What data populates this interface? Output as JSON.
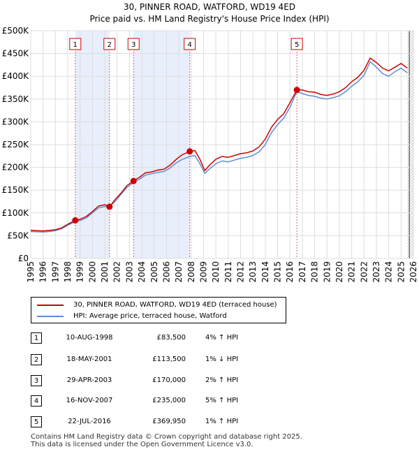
{
  "chart_data": {
    "type": "line",
    "title": "30, PINNER ROAD, WATFORD, WD19 4ED",
    "subtitle": "Price paid vs. HM Land Registry's House Price Index (HPI)",
    "x_range": [
      1995,
      2026
    ],
    "ylim": [
      0,
      500000
    ],
    "y_ticks": [
      0,
      50000,
      100000,
      150000,
      200000,
      250000,
      300000,
      350000,
      400000,
      450000,
      500000
    ],
    "y_tick_labels": [
      "£0",
      "£50K",
      "£100K",
      "£150K",
      "£200K",
      "£250K",
      "£300K",
      "£350K",
      "£400K",
      "£450K",
      "£500K"
    ],
    "x_ticks": [
      1995,
      1996,
      1997,
      1998,
      1999,
      2000,
      2001,
      2002,
      2003,
      2004,
      2005,
      2006,
      2007,
      2008,
      2009,
      2010,
      2011,
      2012,
      2013,
      2014,
      2015,
      2016,
      2017,
      2018,
      2019,
      2020,
      2021,
      2022,
      2023,
      2024,
      2025,
      2026
    ],
    "grid": true,
    "series": [
      {
        "name": "30, PINNER ROAD, WATFORD, WD19 4ED (terraced house)",
        "color": "#cc0000",
        "points": [
          [
            1995.0,
            62000
          ],
          [
            1995.5,
            61000
          ],
          [
            1996.0,
            60500
          ],
          [
            1996.5,
            61500
          ],
          [
            1997.0,
            63000
          ],
          [
            1997.5,
            67000
          ],
          [
            1998.0,
            75000
          ],
          [
            1998.6,
            83500
          ],
          [
            1999.0,
            86000
          ],
          [
            1999.5,
            92000
          ],
          [
            2000.0,
            103000
          ],
          [
            2000.5,
            115000
          ],
          [
            2001.0,
            118000
          ],
          [
            2001.4,
            113500
          ],
          [
            2001.8,
            128000
          ],
          [
            2002.3,
            143000
          ],
          [
            2002.8,
            160000
          ],
          [
            2003.3,
            170000
          ],
          [
            2003.8,
            178000
          ],
          [
            2004.3,
            188000
          ],
          [
            2004.8,
            190000
          ],
          [
            2005.3,
            194000
          ],
          [
            2005.8,
            196000
          ],
          [
            2006.3,
            205000
          ],
          [
            2006.8,
            218000
          ],
          [
            2007.3,
            228000
          ],
          [
            2007.9,
            235000
          ],
          [
            2008.3,
            237000
          ],
          [
            2008.7,
            218000
          ],
          [
            2009.1,
            193000
          ],
          [
            2009.5,
            205000
          ],
          [
            2010.0,
            218000
          ],
          [
            2010.5,
            224000
          ],
          [
            2011.0,
            222000
          ],
          [
            2011.5,
            226000
          ],
          [
            2012.0,
            230000
          ],
          [
            2012.5,
            232000
          ],
          [
            2013.0,
            236000
          ],
          [
            2013.5,
            245000
          ],
          [
            2014.0,
            262000
          ],
          [
            2014.5,
            288000
          ],
          [
            2015.0,
            305000
          ],
          [
            2015.5,
            318000
          ],
          [
            2016.0,
            342000
          ],
          [
            2016.56,
            369950
          ],
          [
            2017.0,
            370000
          ],
          [
            2017.5,
            366000
          ],
          [
            2018.0,
            365000
          ],
          [
            2018.5,
            360000
          ],
          [
            2019.0,
            358000
          ],
          [
            2019.5,
            361000
          ],
          [
            2020.0,
            366000
          ],
          [
            2020.5,
            375000
          ],
          [
            2021.0,
            388000
          ],
          [
            2021.5,
            398000
          ],
          [
            2022.0,
            413000
          ],
          [
            2022.5,
            440000
          ],
          [
            2023.0,
            430000
          ],
          [
            2023.5,
            418000
          ],
          [
            2024.0,
            412000
          ],
          [
            2024.5,
            420000
          ],
          [
            2025.0,
            428000
          ],
          [
            2025.5,
            418000
          ]
        ]
      },
      {
        "name": "HPI: Average price, terraced house, Watford",
        "color": "#5b8fd4",
        "points": [
          [
            1995.0,
            59000
          ],
          [
            1995.5,
            58500
          ],
          [
            1996.0,
            58000
          ],
          [
            1996.5,
            59000
          ],
          [
            1997.0,
            61000
          ],
          [
            1997.5,
            65000
          ],
          [
            1998.0,
            73000
          ],
          [
            1998.6,
            80500
          ],
          [
            1999.0,
            83000
          ],
          [
            1999.5,
            89000
          ],
          [
            2000.0,
            100000
          ],
          [
            2000.5,
            111000
          ],
          [
            2001.0,
            114000
          ],
          [
            2001.4,
            114500
          ],
          [
            2001.8,
            124000
          ],
          [
            2002.3,
            140000
          ],
          [
            2002.8,
            156000
          ],
          [
            2003.3,
            166500
          ],
          [
            2003.8,
            174000
          ],
          [
            2004.3,
            183000
          ],
          [
            2004.8,
            186000
          ],
          [
            2005.3,
            189000
          ],
          [
            2005.8,
            191000
          ],
          [
            2006.3,
            199000
          ],
          [
            2006.8,
            210000
          ],
          [
            2007.3,
            218000
          ],
          [
            2007.9,
            224000
          ],
          [
            2008.3,
            226000
          ],
          [
            2008.7,
            208000
          ],
          [
            2009.1,
            187000
          ],
          [
            2009.5,
            197000
          ],
          [
            2010.0,
            208000
          ],
          [
            2010.5,
            214000
          ],
          [
            2011.0,
            212000
          ],
          [
            2011.5,
            216000
          ],
          [
            2012.0,
            220000
          ],
          [
            2012.5,
            222000
          ],
          [
            2013.0,
            226000
          ],
          [
            2013.5,
            234000
          ],
          [
            2014.0,
            250000
          ],
          [
            2014.5,
            276000
          ],
          [
            2015.0,
            294000
          ],
          [
            2015.5,
            308000
          ],
          [
            2016.0,
            332000
          ],
          [
            2016.56,
            366300
          ],
          [
            2017.0,
            362000
          ],
          [
            2017.5,
            358000
          ],
          [
            2018.0,
            356000
          ],
          [
            2018.5,
            352000
          ],
          [
            2019.0,
            350000
          ],
          [
            2019.5,
            353000
          ],
          [
            2020.0,
            357000
          ],
          [
            2020.5,
            366000
          ],
          [
            2021.0,
            378000
          ],
          [
            2021.5,
            388000
          ],
          [
            2022.0,
            402000
          ],
          [
            2022.5,
            432000
          ],
          [
            2023.0,
            420000
          ],
          [
            2023.5,
            406000
          ],
          [
            2024.0,
            400000
          ],
          [
            2024.5,
            410000
          ],
          [
            2025.0,
            418000
          ],
          [
            2025.5,
            408000
          ]
        ]
      }
    ],
    "sales": [
      {
        "num": "1",
        "x": 1998.61,
        "value": 83500
      },
      {
        "num": "2",
        "x": 2001.38,
        "value": 113500
      },
      {
        "num": "3",
        "x": 2003.33,
        "value": 170000
      },
      {
        "num": "4",
        "x": 2007.88,
        "value": 235000
      },
      {
        "num": "5",
        "x": 2016.56,
        "value": 369950
      }
    ],
    "shaded_spans": [
      [
        1998.61,
        2001.38
      ],
      [
        2003.33,
        2007.88
      ]
    ],
    "hatched_span": [
      2025.5,
      2026
    ]
  },
  "legend": {
    "property_label": "30, PINNER ROAD, WATFORD, WD19 4ED (terraced house)",
    "hpi_label": "HPI: Average price, terraced house, Watford"
  },
  "transactions": [
    {
      "num": "1",
      "date": "10-AUG-1998",
      "price": "£83,500",
      "hpi": "4% ↑ HPI"
    },
    {
      "num": "2",
      "date": "18-MAY-2001",
      "price": "£113,500",
      "hpi": "1% ↓ HPI"
    },
    {
      "num": "3",
      "date": "29-APR-2003",
      "price": "£170,000",
      "hpi": "2% ↑ HPI"
    },
    {
      "num": "4",
      "date": "16-NOV-2007",
      "price": "£235,000",
      "hpi": "5% ↑ HPI"
    },
    {
      "num": "5",
      "date": "22-JUL-2016",
      "price": "£369,950",
      "hpi": "1% ↑ HPI"
    }
  ],
  "footer": {
    "line1": "Contains HM Land Registry data © Crown copyright and database right 2025.",
    "line2": "This data is licensed under the Open Government Licence v3.0."
  }
}
